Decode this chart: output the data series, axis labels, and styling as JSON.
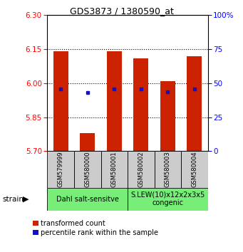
{
  "title": "GDS3873 / 1380590_at",
  "samples": [
    "GSM579999",
    "GSM580000",
    "GSM580001",
    "GSM580002",
    "GSM580003",
    "GSM580004"
  ],
  "bar_bottom": 5.7,
  "bar_tops": [
    6.14,
    5.78,
    6.14,
    6.11,
    6.01,
    6.12
  ],
  "blue_y_vals": [
    5.975,
    5.958,
    5.975,
    5.975,
    5.962,
    5.975
  ],
  "ylim": [
    5.7,
    6.3
  ],
  "yticks_left": [
    5.7,
    5.85,
    6.0,
    6.15,
    6.3
  ],
  "yticks_right": [
    0,
    25,
    50,
    75,
    100
  ],
  "hlines": [
    5.85,
    6.0,
    6.15
  ],
  "bar_color": "#cc2200",
  "blue_color": "#1111cc",
  "bar_width": 0.55,
  "group1_label": "Dahl salt-sensitve",
  "group2_label": "S.LEW(10)x12x2x3x5\ncongenic",
  "group_color": "#77ee77",
  "sample_box_color": "#cccccc",
  "legend_red_label": "transformed count",
  "legend_blue_label": "percentile rank within the sample",
  "strain_label": "strain",
  "title_fontsize": 9,
  "tick_fontsize": 7.5,
  "sample_fontsize": 6,
  "group_fontsize": 7,
  "legend_fontsize": 7,
  "figsize": [
    3.41,
    3.54
  ],
  "dpi": 100
}
